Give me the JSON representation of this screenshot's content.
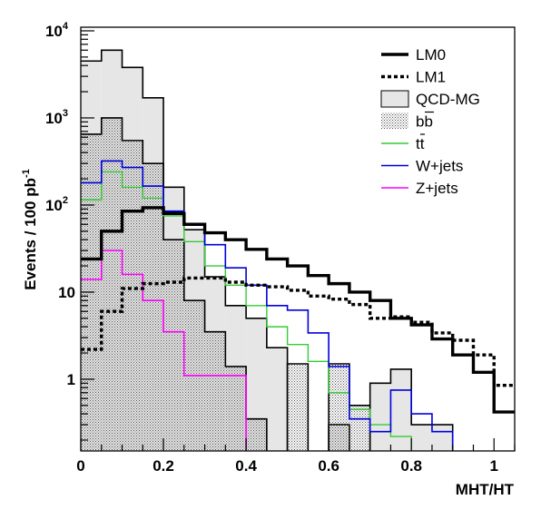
{
  "chart_data": {
    "type": "histogram",
    "xlabel": "MHT/HT",
    "ylabel": "Events / 100 pb",
    "ylabel_sup": "-1",
    "xlim": [
      0,
      1.05
    ],
    "ylim": [
      0.15,
      11000
    ],
    "y_scale": "log",
    "bin_width": 0.05,
    "x_ticks": [
      0,
      0.2,
      0.4,
      0.6,
      0.8,
      1
    ],
    "x_tick_labels": [
      "0",
      "0.2",
      "0.4",
      "0.6",
      "0.8",
      "1"
    ],
    "y_ticks": [
      1,
      10,
      100,
      1000,
      10000
    ],
    "y_tick_labels": [
      {
        "base": "1",
        "exp": ""
      },
      {
        "base": "10",
        "exp": ""
      },
      {
        "base": "10",
        "exp": "2"
      },
      {
        "base": "10",
        "exp": "3"
      },
      {
        "base": "10",
        "exp": "4"
      }
    ],
    "legend_position": "top-right",
    "series": [
      {
        "key": "qcd",
        "name": "QCD-MG",
        "style": "filled",
        "color": "#000000",
        "fill": "#e6e6e6",
        "width": 1.6,
        "values": [
          4500,
          6000,
          3800,
          1700,
          160,
          52,
          15,
          7,
          5,
          2.3,
          0,
          0,
          0.3,
          0,
          0.9,
          1.3,
          0.3,
          0.3,
          0,
          0,
          0
        ]
      },
      {
        "key": "bb",
        "name": "bb",
        "style": "hatched",
        "color": "#000000",
        "fill": "#888888",
        "width": 1.6,
        "values": [
          650,
          1000,
          550,
          300,
          40,
          8,
          3.5,
          1.4,
          0.35,
          0,
          1.5,
          0,
          1.5,
          0.5,
          0,
          0,
          0,
          0,
          0,
          0,
          0
        ]
      },
      {
        "key": "tt",
        "name": "tt",
        "style": "line",
        "color": "#33cc33",
        "width": 1.4,
        "values": [
          115,
          240,
          160,
          120,
          75,
          38,
          20,
          12,
          7,
          4,
          2.5,
          1.6,
          0.7,
          0.45,
          0.3,
          0.22,
          0,
          0,
          0,
          0,
          0
        ]
      },
      {
        "key": "wjets",
        "name": "W+jets",
        "style": "line",
        "color": "#0000dd",
        "width": 1.6,
        "values": [
          180,
          320,
          270,
          165,
          85,
          60,
          35,
          19,
          12,
          7,
          6.2,
          3.4,
          1.4,
          0.35,
          0.25,
          0.75,
          0.4,
          0.25,
          0,
          0,
          0
        ]
      },
      {
        "key": "zjets",
        "name": "Z+jets",
        "style": "line",
        "color": "#ff00ff",
        "width": 1.6,
        "values": [
          14,
          30,
          16,
          8,
          3.5,
          1.1,
          1.1,
          1.1,
          0,
          0,
          0,
          0,
          0,
          0,
          0,
          0,
          0,
          0,
          0,
          0,
          0
        ]
      },
      {
        "key": "lm0",
        "name": "LM0",
        "style": "line",
        "color": "#000000",
        "width": 3.4,
        "values": [
          24,
          50,
          85,
          93,
          80,
          60,
          48,
          40,
          31,
          24,
          20,
          15.5,
          12.5,
          10,
          8,
          5,
          4.2,
          2.9,
          1.9,
          1.2,
          0.42
        ]
      },
      {
        "key": "lm1",
        "name": "LM1",
        "style": "dotted",
        "color": "#000000",
        "width": 3.4,
        "values": [
          2.2,
          6,
          11,
          12.5,
          13,
          14.5,
          14.5,
          13,
          12,
          11.5,
          10.5,
          9,
          8.3,
          7.2,
          5,
          5.2,
          4.5,
          3.4,
          2.8,
          1.9,
          0.85
        ]
      }
    ],
    "legend": [
      {
        "key": "lm0",
        "label": "LM0"
      },
      {
        "key": "lm1",
        "label": "LM1"
      },
      {
        "key": "qcd",
        "label": "QCD-MG"
      },
      {
        "key": "bb",
        "label": "bb"
      },
      {
        "key": "tt",
        "label": "tt"
      },
      {
        "key": "wjets",
        "label": "W+jets"
      },
      {
        "key": "zjets",
        "label": "Z+jets"
      }
    ]
  }
}
